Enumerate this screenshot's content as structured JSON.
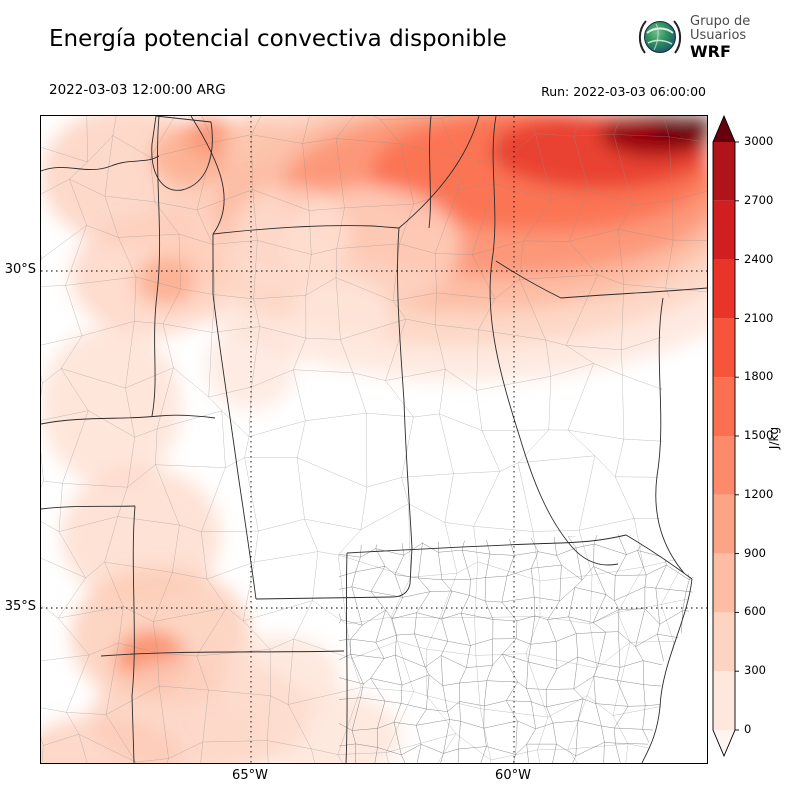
{
  "header": {
    "title": "Energía potencial convectiva disponible",
    "logo": {
      "org_line1": "Grupo de",
      "org_line2": "Usuarios",
      "org_line3": "WRF"
    }
  },
  "timebar": {
    "valid_time": "2022-03-03 12:00:00 ARG",
    "run": "Run: 2022-03-03 06:00:00"
  },
  "map": {
    "lat_ticks": [
      "30°S",
      "35°S"
    ],
    "lon_ticks": [
      "65°W",
      "60°W"
    ]
  },
  "colorbar": {
    "unit": "J/kg",
    "tick_labels": [
      "3000",
      "2700",
      "2400",
      "2100",
      "1800",
      "1500",
      "1200",
      "900",
      "600",
      "300",
      "0"
    ],
    "over_color": "#67000d",
    "under_color": "#fff5f0",
    "segment_colors_top_to_bottom": [
      "#b1131a",
      "#d11e20",
      "#e93529",
      "#f6553c",
      "#fb7051",
      "#fc8a6b",
      "#fca486",
      "#fcbda4",
      "#fdd4c2",
      "#fee8dd"
    ]
  },
  "chart_data": {
    "type": "heatmap",
    "title": "Energía potencial convectiva disponible",
    "variable": "CAPE (convective available potential energy)",
    "units": "J/kg",
    "levels": [
      0,
      300,
      600,
      900,
      1200,
      1500,
      1800,
      2100,
      2400,
      2700,
      3000
    ],
    "colormap": "Reds (white = 0, dark red > 3000)",
    "valid_time": "2022-03-03 12:00:00 ARG",
    "run_time": "Run: 2022-03-03 06:00:00",
    "lat_gridlines": [
      "30°S",
      "35°S"
    ],
    "lon_gridlines": [
      "65°W",
      "60°W"
    ],
    "field_summary": "Maximum (dark red, >2400 J/kg) band across the far north / northeast corner of the domain; light values (0-600 J/kg) over the western Andes foothills and southwest; near-zero (white) over the center and southeast (Buenos Aires region)."
  }
}
